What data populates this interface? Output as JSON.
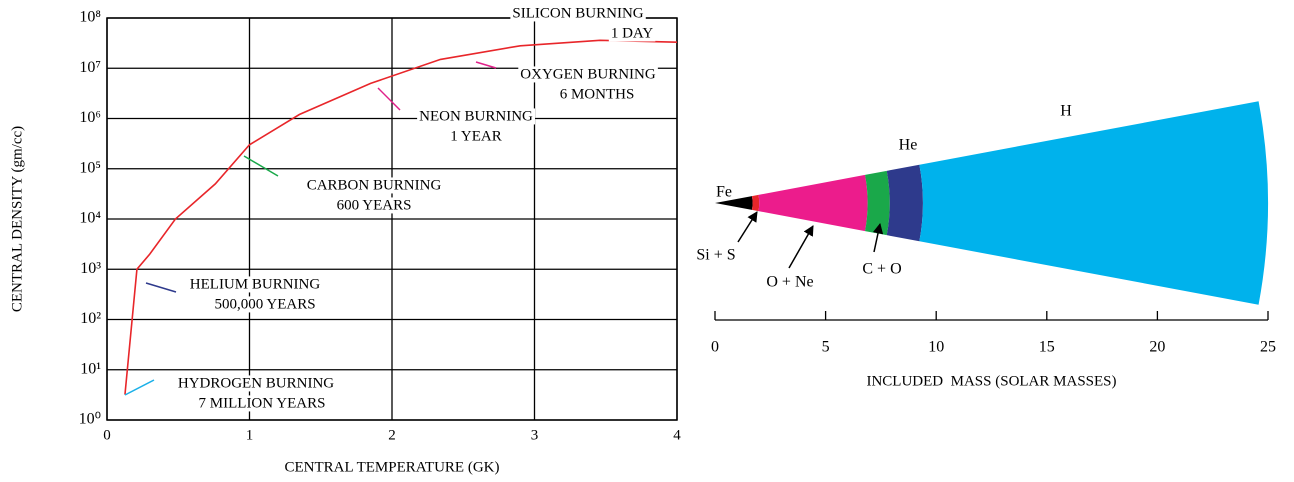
{
  "chart_data": [
    {
      "type": "line",
      "x_label": "CENTRAL TEMPERATURE (GK)",
      "y_label": "CENTRAL DENSITY (gm/cc)",
      "x": [
        0.126,
        0.21,
        0.3,
        0.48,
        0.76,
        1.0,
        1.35,
        1.85,
        2.34,
        2.9,
        3.46,
        4.0
      ],
      "values": [
        3.2,
        1000,
        2000,
        10000,
        50000,
        300000,
        1200000,
        5000000,
        15000000,
        28000000,
        36000000,
        33000000
      ],
      "color": "#e8262a",
      "xlim": [
        0,
        4
      ],
      "xticks": [
        0,
        1,
        2,
        3,
        4
      ],
      "ylim": [
        1,
        100000000
      ],
      "log_y": true,
      "grid": true,
      "yticks": [
        {
          "value": 1,
          "label": "10⁰"
        },
        {
          "value": 10,
          "label": "10¹"
        },
        {
          "value": 100,
          "label": "10²"
        },
        {
          "value": 1000,
          "label": "10³"
        },
        {
          "value": 10000,
          "label": "10⁴"
        },
        {
          "value": 100000,
          "label": "10⁵"
        },
        {
          "value": 1000000,
          "label": "10⁶"
        },
        {
          "value": 10000000,
          "label": "10⁷"
        },
        {
          "value": 100000000,
          "label": "10⁸"
        }
      ],
      "annotations": [
        {
          "lines": [
            "SILICON BURNING",
            "1 DAY"
          ],
          "color": "#e8262a"
        },
        {
          "lines": [
            "OXYGEN BURNING",
            "6 MONTHS"
          ],
          "color": "#e0218a"
        },
        {
          "lines": [
            "NEON BURNING",
            "1 YEAR"
          ],
          "color": "#e0218a"
        },
        {
          "lines": [
            "CARBON BURNING",
            "600 YEARS"
          ],
          "color": "#1aa84a"
        },
        {
          "lines": [
            "HELIUM BURNING",
            "500,000 YEARS"
          ],
          "color": "#2e3a8c"
        },
        {
          "lines": [
            "HYDROGEN BURNING",
            "7 MILLION YEARS"
          ],
          "color": "#1ab0e8"
        }
      ]
    },
    {
      "type": "wedge",
      "x_label": "INCLUDED  MASS (SOLAR MASSES)",
      "xlim": [
        0,
        25
      ],
      "xticks": [
        0,
        5,
        10,
        15,
        20,
        25
      ],
      "layers": [
        {
          "name": "Fe",
          "color": "#000000",
          "value": 1.7
        },
        {
          "name": "Si + S",
          "color": "#e8262a",
          "value": 0.3
        },
        {
          "name": "O + Ne",
          "color": "#ec1c8c",
          "value": 4.9
        },
        {
          "name": "C + O",
          "color": "#1aa84a",
          "value": 1.0
        },
        {
          "name": "He",
          "color": "#2e3a8c",
          "value": 1.5
        },
        {
          "name": "H",
          "color": "#00b2ec",
          "value": 15.6
        }
      ]
    }
  ]
}
